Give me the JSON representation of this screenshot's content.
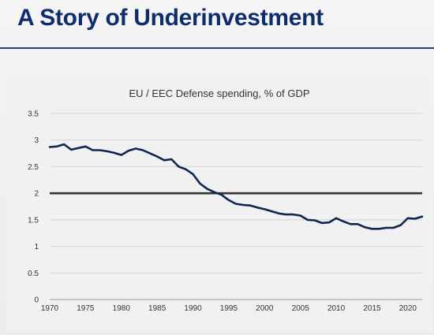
{
  "slide": {
    "title": "A Story of Underinvestment"
  },
  "colors": {
    "title": "#0f2d6b",
    "rule": "#24427a",
    "series": "#10264f",
    "reference_line": "#333333",
    "grid": "#d4d4d4"
  },
  "chart_data": {
    "type": "line",
    "title": "EU / EEC Defense spending, % of GDP",
    "xlabel": "",
    "ylabel": "",
    "xlim": [
      1970,
      2022
    ],
    "ylim": [
      0,
      3.5
    ],
    "xticks": [
      1970,
      1975,
      1980,
      1985,
      1990,
      1995,
      2000,
      2005,
      2010,
      2015,
      2020
    ],
    "yticks": [
      0,
      0.5,
      1,
      1.5,
      2,
      2.5,
      3,
      3.5
    ],
    "ytick_labels": [
      "0",
      "0.5",
      "1",
      "1.5",
      "2",
      "2.5",
      "3",
      "3.5"
    ],
    "grid": "horizontal",
    "legend": "none",
    "reference_line": {
      "y": 2
    },
    "series": [
      {
        "x": [
          1970,
          1971,
          1972,
          1973,
          1974,
          1975,
          1976,
          1977,
          1978,
          1979,
          1980,
          1981,
          1982,
          1983,
          1984,
          1985,
          1986,
          1987,
          1988,
          1989,
          1990,
          1991,
          1992,
          1993,
          1994,
          1995,
          1996,
          1997,
          1998,
          1999,
          2000,
          2001,
          2002,
          2003,
          2004,
          2005,
          2006,
          2007,
          2008,
          2009,
          2010,
          2011,
          2012,
          2013,
          2014,
          2015,
          2016,
          2017,
          2018,
          2019,
          2020,
          2021,
          2022
        ],
        "y": [
          2.87,
          2.88,
          2.92,
          2.82,
          2.85,
          2.88,
          2.81,
          2.81,
          2.79,
          2.76,
          2.72,
          2.8,
          2.84,
          2.81,
          2.75,
          2.69,
          2.62,
          2.64,
          2.5,
          2.45,
          2.36,
          2.18,
          2.08,
          2.02,
          1.97,
          1.87,
          1.8,
          1.78,
          1.77,
          1.73,
          1.7,
          1.66,
          1.62,
          1.6,
          1.6,
          1.58,
          1.5,
          1.49,
          1.44,
          1.45,
          1.53,
          1.47,
          1.42,
          1.42,
          1.36,
          1.33,
          1.33,
          1.35,
          1.35,
          1.4,
          1.53,
          1.52,
          1.56
        ]
      }
    ]
  }
}
